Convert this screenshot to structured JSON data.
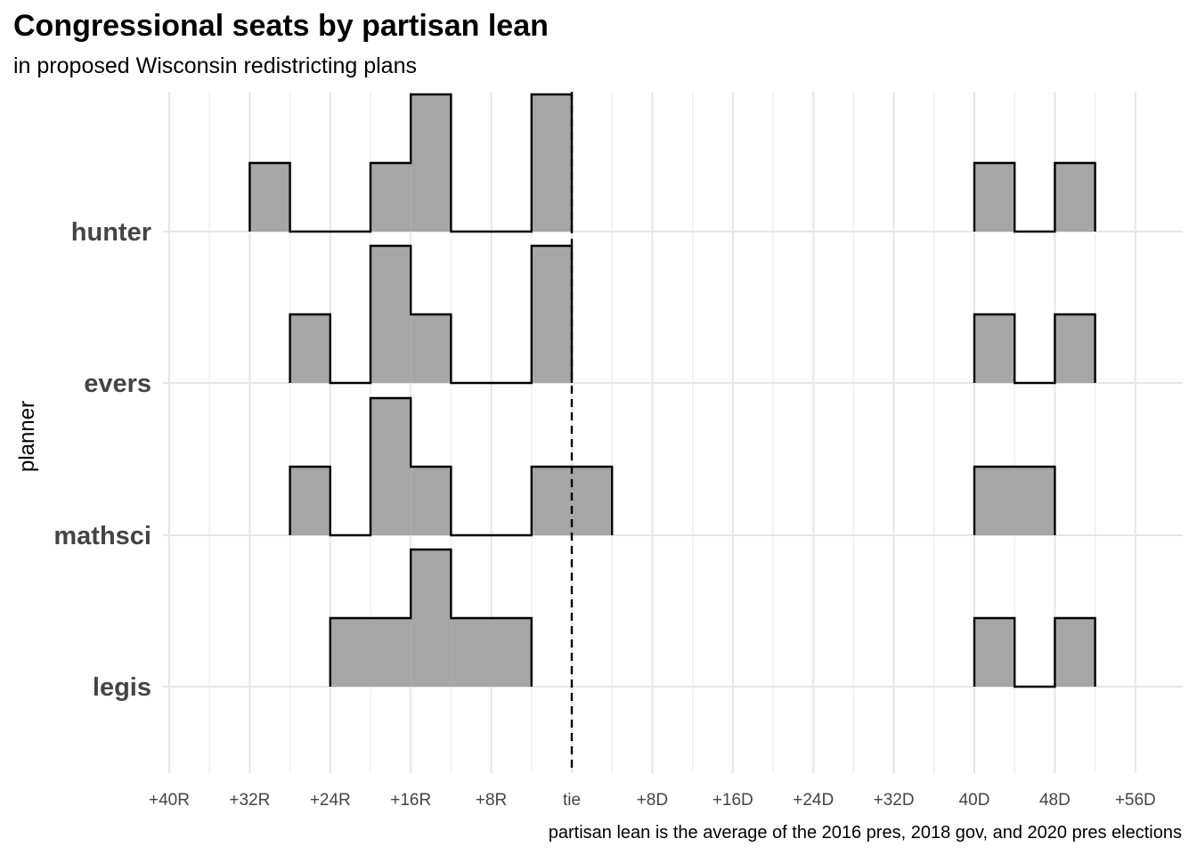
{
  "chart_data": {
    "type": "histogram",
    "title": "Congressional seats by partisan lean",
    "subtitle": "in proposed Wisconsin redistricting plans",
    "xlabel": "",
    "ylabel": "planner",
    "caption": "partisan lean is the average of the 2016 pres, 2018 gov, and 2020 pres elections",
    "x_scale_note": "negative = Republican lean, positive = Democratic lean, in points",
    "xlim": [
      -40,
      58
    ],
    "bin_width": 4,
    "x_ticks": [
      {
        "value": -40,
        "label": "+40R"
      },
      {
        "value": -32,
        "label": "+32R"
      },
      {
        "value": -24,
        "label": "+24R"
      },
      {
        "value": -16,
        "label": "+16R"
      },
      {
        "value": -8,
        "label": "+8R"
      },
      {
        "value": 0,
        "label": "tie"
      },
      {
        "value": 8,
        "label": "+8D"
      },
      {
        "value": 16,
        "label": "+16D"
      },
      {
        "value": 24,
        "label": "+24D"
      },
      {
        "value": 32,
        "label": "+32D"
      },
      {
        "value": 40,
        "label": "40D"
      },
      {
        "value": 48,
        "label": "48D"
      },
      {
        "value": 56,
        "label": "+56D"
      }
    ],
    "reference_line": {
      "x": 0,
      "style": "dashed"
    },
    "grid": true,
    "fill_color": "#a6a6a6",
    "outline_color": "#000000",
    "series": [
      {
        "name": "hunter",
        "counts": [
          {
            "x0": -32,
            "x1": -28,
            "count": 1
          },
          {
            "x0": -28,
            "x1": -20,
            "count": 0
          },
          {
            "x0": -20,
            "x1": -16,
            "count": 1
          },
          {
            "x0": -16,
            "x1": -12,
            "count": 2
          },
          {
            "x0": -12,
            "x1": -4,
            "count": 0
          },
          {
            "x0": -4,
            "x1": 0,
            "count": 2
          },
          {
            "x0": 40,
            "x1": 44,
            "count": 1
          },
          {
            "x0": 44,
            "x1": 48,
            "count": 0
          },
          {
            "x0": 48,
            "x1": 52,
            "count": 1
          }
        ]
      },
      {
        "name": "evers",
        "counts": [
          {
            "x0": -28,
            "x1": -24,
            "count": 1
          },
          {
            "x0": -24,
            "x1": -20,
            "count": 0
          },
          {
            "x0": -20,
            "x1": -16,
            "count": 2
          },
          {
            "x0": -16,
            "x1": -12,
            "count": 1
          },
          {
            "x0": -12,
            "x1": -4,
            "count": 0
          },
          {
            "x0": -4,
            "x1": 0,
            "count": 2
          },
          {
            "x0": 40,
            "x1": 44,
            "count": 1
          },
          {
            "x0": 44,
            "x1": 48,
            "count": 0
          },
          {
            "x0": 48,
            "x1": 52,
            "count": 1
          }
        ]
      },
      {
        "name": "mathsci",
        "counts": [
          {
            "x0": -28,
            "x1": -24,
            "count": 1
          },
          {
            "x0": -24,
            "x1": -20,
            "count": 0
          },
          {
            "x0": -20,
            "x1": -16,
            "count": 2
          },
          {
            "x0": -16,
            "x1": -12,
            "count": 1
          },
          {
            "x0": -12,
            "x1": -4,
            "count": 0
          },
          {
            "x0": -4,
            "x1": 4,
            "count": 1
          },
          {
            "x0": 40,
            "x1": 48,
            "count": 1
          }
        ]
      },
      {
        "name": "legis",
        "counts": [
          {
            "x0": -24,
            "x1": -16,
            "count": 1
          },
          {
            "x0": -16,
            "x1": -12,
            "count": 2
          },
          {
            "x0": -12,
            "x1": -4,
            "count": 1
          },
          {
            "x0": 40,
            "x1": 44,
            "count": 1
          },
          {
            "x0": 44,
            "x1": 48,
            "count": 0
          },
          {
            "x0": 48,
            "x1": 52,
            "count": 1
          }
        ]
      }
    ]
  }
}
